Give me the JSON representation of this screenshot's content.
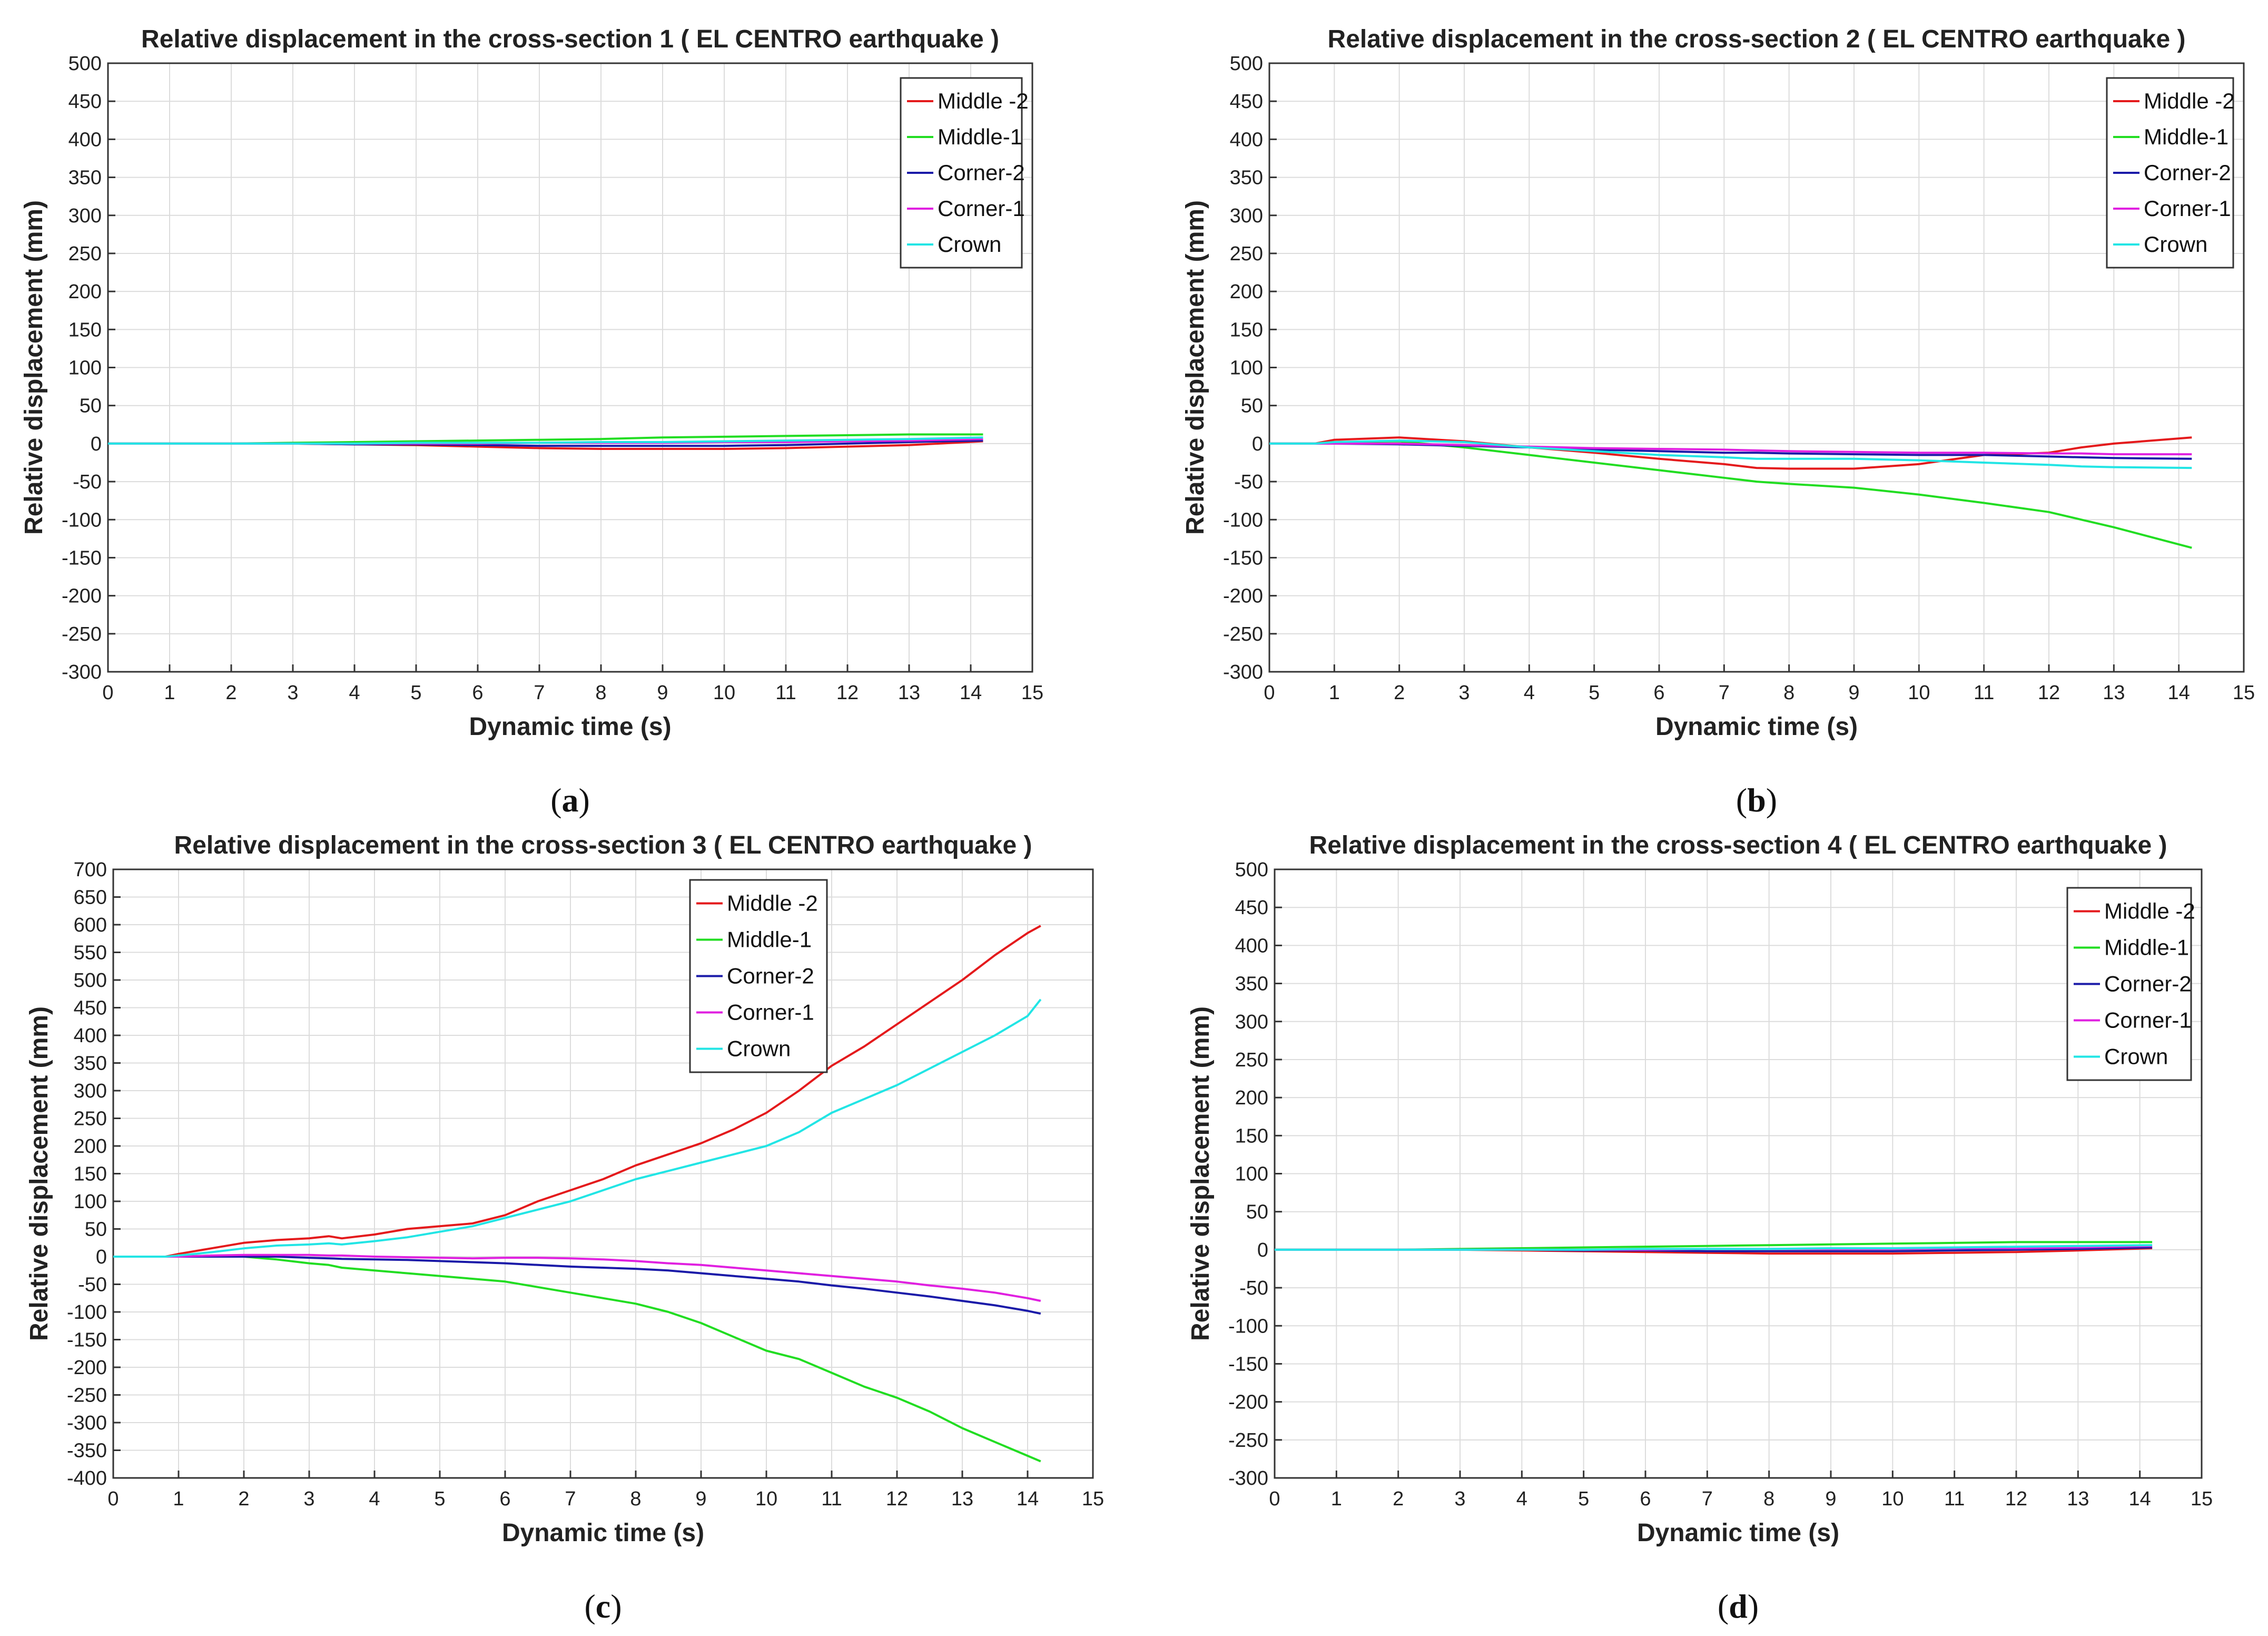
{
  "chart_data": [
    {
      "type": "line",
      "panel_label": "a",
      "title": "Relative displacement in the cross-section 1 ( EL CENTRO earthquake )",
      "xlabel": "Dynamic time (s)",
      "ylabel": "Relative displacement (mm)",
      "xlim": [
        0,
        15
      ],
      "ylim": [
        -300,
        500
      ],
      "xticks": [
        0,
        1,
        2,
        3,
        4,
        5,
        6,
        7,
        8,
        9,
        10,
        11,
        12,
        13,
        14,
        15
      ],
      "yticks": [
        -300,
        -250,
        -200,
        -150,
        -100,
        -50,
        0,
        50,
        100,
        150,
        200,
        250,
        300,
        350,
        400,
        450,
        500
      ],
      "grid": true,
      "legend_position": "top-right",
      "series": [
        {
          "name": "Middle -2",
          "color": "#e41a1c",
          "x": [
            0,
            1,
            2,
            3,
            4,
            5,
            6,
            7,
            8,
            9,
            10,
            11,
            12,
            13,
            14.2
          ],
          "y": [
            0,
            0,
            0,
            0,
            -1,
            -2,
            -4,
            -6,
            -7,
            -7,
            -7,
            -6,
            -4,
            -2,
            3
          ]
        },
        {
          "name": "Middle-1",
          "color": "#22dd22",
          "x": [
            0,
            1,
            2,
            3,
            4,
            5,
            6,
            7,
            8,
            9,
            10,
            11,
            12,
            13,
            14.2
          ],
          "y": [
            0,
            0,
            0,
            1,
            2,
            3,
            4,
            5,
            6,
            8,
            9,
            10,
            11,
            12,
            12
          ]
        },
        {
          "name": "Corner-2",
          "color": "#1a1aa8",
          "x": [
            0,
            1,
            2,
            3,
            4,
            5,
            6,
            7,
            8,
            9,
            10,
            11,
            12,
            13,
            14.2
          ],
          "y": [
            0,
            0,
            0,
            0,
            -1,
            -1,
            -2,
            -3,
            -3,
            -3,
            -3,
            -2,
            0,
            2,
            4
          ]
        },
        {
          "name": "Corner-1",
          "color": "#e020e0",
          "x": [
            0,
            1,
            2,
            3,
            4,
            5,
            6,
            7,
            8,
            9,
            10,
            11,
            12,
            13,
            14.2
          ],
          "y": [
            0,
            0,
            0,
            0,
            0,
            0,
            0,
            1,
            1,
            1,
            2,
            2,
            3,
            4,
            6
          ]
        },
        {
          "name": "Crown",
          "color": "#22e5e5",
          "x": [
            0,
            1,
            2,
            3,
            4,
            5,
            6,
            7,
            8,
            9,
            10,
            11,
            12,
            13,
            14.2
          ],
          "y": [
            0,
            0,
            0,
            0,
            0,
            1,
            1,
            1,
            2,
            2,
            3,
            4,
            5,
            6,
            8
          ]
        }
      ]
    },
    {
      "type": "line",
      "panel_label": "b",
      "title": "Relative displacement in the cross-section 2 ( EL CENTRO earthquake )",
      "xlabel": "Dynamic time (s)",
      "ylabel": "Relative displacement (mm)",
      "xlim": [
        0,
        15
      ],
      "ylim": [
        -300,
        500
      ],
      "xticks": [
        0,
        1,
        2,
        3,
        4,
        5,
        6,
        7,
        8,
        9,
        10,
        11,
        12,
        13,
        14,
        15
      ],
      "yticks": [
        -300,
        -250,
        -200,
        -150,
        -100,
        -50,
        0,
        50,
        100,
        150,
        200,
        250,
        300,
        350,
        400,
        450,
        500
      ],
      "grid": true,
      "legend_position": "top-right",
      "series": [
        {
          "name": "Middle -2",
          "color": "#e41a1c",
          "x": [
            0,
            0.7,
            1,
            2,
            3,
            4,
            5,
            6,
            7,
            7.5,
            8,
            9,
            10,
            11,
            12,
            12.5,
            13,
            14.2
          ],
          "y": [
            0,
            0,
            5,
            8,
            3,
            -5,
            -12,
            -20,
            -27,
            -32,
            -33,
            -33,
            -27,
            -15,
            -12,
            -5,
            0,
            8
          ]
        },
        {
          "name": "Middle-1",
          "color": "#22dd22",
          "x": [
            0,
            0.7,
            1,
            2,
            3,
            4,
            5,
            6,
            7,
            7.5,
            8,
            9,
            10,
            11,
            12,
            12.5,
            13,
            14.2
          ],
          "y": [
            0,
            0,
            2,
            3,
            -5,
            -15,
            -25,
            -35,
            -45,
            -50,
            -53,
            -58,
            -67,
            -78,
            -90,
            -100,
            -110,
            -137
          ]
        },
        {
          "name": "Corner-2",
          "color": "#1a1aa8",
          "x": [
            0,
            0.7,
            1,
            2,
            3,
            4,
            5,
            6,
            7,
            7.5,
            8,
            9,
            10,
            11,
            12,
            12.5,
            13,
            14.2
          ],
          "y": [
            0,
            0,
            0,
            -1,
            -3,
            -5,
            -8,
            -10,
            -12,
            -12,
            -13,
            -14,
            -15,
            -15,
            -17,
            -18,
            -19,
            -20
          ]
        },
        {
          "name": "Corner-1",
          "color": "#e020e0",
          "x": [
            0,
            0.7,
            1,
            2,
            3,
            4,
            5,
            6,
            7,
            7.5,
            8,
            9,
            10,
            11,
            12,
            12.5,
            13,
            14.2
          ],
          "y": [
            0,
            0,
            0,
            0,
            -2,
            -4,
            -6,
            -7,
            -8,
            -9,
            -10,
            -11,
            -12,
            -12,
            -13,
            -13,
            -14,
            -14
          ]
        },
        {
          "name": "Crown",
          "color": "#22e5e5",
          "x": [
            0,
            0.7,
            1,
            2,
            3,
            4,
            5,
            6,
            7,
            7.5,
            8,
            9,
            10,
            11,
            12,
            12.5,
            13,
            14.2
          ],
          "y": [
            0,
            0,
            2,
            4,
            2,
            -5,
            -10,
            -15,
            -18,
            -20,
            -20,
            -20,
            -22,
            -25,
            -28,
            -30,
            -31,
            -32
          ]
        }
      ]
    },
    {
      "type": "line",
      "panel_label": "c",
      "title": "Relative displacement in the cross-section 3 ( EL CENTRO earthquake )",
      "xlabel": "Dynamic time (s)",
      "ylabel": "Relative displacement (mm)",
      "xlim": [
        0,
        15
      ],
      "ylim": [
        -400,
        700
      ],
      "xticks": [
        0,
        1,
        2,
        3,
        4,
        5,
        6,
        7,
        8,
        9,
        10,
        11,
        12,
        13,
        14,
        15
      ],
      "yticks": [
        -400,
        -350,
        -300,
        -250,
        -200,
        -150,
        -100,
        -50,
        0,
        50,
        100,
        150,
        200,
        250,
        300,
        350,
        400,
        450,
        500,
        550,
        600,
        650,
        700
      ],
      "grid": true,
      "legend_position": "top-right",
      "series": [
        {
          "name": "Middle -2",
          "color": "#e41a1c",
          "x": [
            0,
            0.8,
            1,
            1.5,
            2,
            2.5,
            3,
            3.3,
            3.5,
            4,
            4.5,
            5,
            5.5,
            6,
            6.5,
            7,
            7.5,
            8,
            8.5,
            9,
            9.5,
            10,
            10.5,
            11,
            11.5,
            12,
            12.5,
            13,
            13.5,
            14,
            14.2
          ],
          "y": [
            0,
            0,
            5,
            15,
            25,
            30,
            33,
            37,
            33,
            40,
            50,
            55,
            60,
            75,
            100,
            120,
            140,
            165,
            185,
            205,
            230,
            260,
            300,
            345,
            380,
            420,
            460,
            500,
            545,
            585,
            598
          ]
        },
        {
          "name": "Middle-1",
          "color": "#22dd22",
          "x": [
            0,
            0.8,
            1,
            1.5,
            2,
            2.5,
            3,
            3.3,
            3.5,
            4,
            4.5,
            5,
            5.5,
            6,
            6.5,
            7,
            7.5,
            8,
            8.5,
            9,
            9.5,
            10,
            10.5,
            11,
            11.5,
            12,
            12.5,
            13,
            13.5,
            14,
            14.2
          ],
          "y": [
            0,
            0,
            0,
            2,
            0,
            -5,
            -12,
            -15,
            -20,
            -25,
            -30,
            -35,
            -40,
            -45,
            -55,
            -65,
            -75,
            -85,
            -100,
            -120,
            -145,
            -170,
            -185,
            -210,
            -235,
            -255,
            -280,
            -310,
            -335,
            -360,
            -370
          ]
        },
        {
          "name": "Corner-2",
          "color": "#1a1aa8",
          "x": [
            0,
            0.8,
            1,
            1.5,
            2,
            2.5,
            3,
            3.3,
            3.5,
            4,
            4.5,
            5,
            5.5,
            6,
            6.5,
            7,
            7.5,
            8,
            8.5,
            9,
            9.5,
            10,
            10.5,
            11,
            11.5,
            12,
            12.5,
            13,
            13.5,
            14,
            14.2
          ],
          "y": [
            0,
            0,
            0,
            0,
            0,
            0,
            -2,
            -3,
            -4,
            -5,
            -6,
            -8,
            -10,
            -12,
            -15,
            -18,
            -20,
            -22,
            -25,
            -30,
            -35,
            -40,
            -45,
            -52,
            -58,
            -65,
            -72,
            -80,
            -88,
            -98,
            -103
          ]
        },
        {
          "name": "Corner-1",
          "color": "#e020e0",
          "x": [
            0,
            0.8,
            1,
            1.5,
            2,
            2.5,
            3,
            3.3,
            3.5,
            4,
            4.5,
            5,
            5.5,
            6,
            6.5,
            7,
            7.5,
            8,
            8.5,
            9,
            9.5,
            10,
            10.5,
            11,
            11.5,
            12,
            12.5,
            13,
            13.5,
            14,
            14.2
          ],
          "y": [
            0,
            0,
            0,
            2,
            3,
            3,
            3,
            2,
            2,
            0,
            -1,
            -2,
            -3,
            -2,
            -2,
            -3,
            -5,
            -8,
            -12,
            -15,
            -20,
            -25,
            -30,
            -35,
            -40,
            -45,
            -52,
            -58,
            -65,
            -75,
            -80
          ]
        },
        {
          "name": "Crown",
          "color": "#22e5e5",
          "x": [
            0,
            0.8,
            1,
            1.5,
            2,
            2.5,
            3,
            3.3,
            3.5,
            4,
            4.5,
            5,
            5.5,
            6,
            6.5,
            7,
            7.5,
            8,
            8.5,
            9,
            9.5,
            10,
            10.5,
            11,
            11.5,
            12,
            12.5,
            13,
            13.5,
            14,
            14.2
          ],
          "y": [
            0,
            0,
            2,
            8,
            15,
            20,
            22,
            24,
            22,
            28,
            35,
            45,
            55,
            70,
            85,
            100,
            120,
            140,
            155,
            170,
            185,
            200,
            225,
            260,
            285,
            310,
            340,
            370,
            400,
            435,
            465
          ]
        }
      ]
    },
    {
      "type": "line",
      "panel_label": "d",
      "title": "Relative displacement in the cross-section 4 ( EL CENTRO earthquake )",
      "xlabel": "Dynamic time (s)",
      "ylabel": "Relative displacement (mm)",
      "xlim": [
        0,
        15
      ],
      "ylim": [
        -300,
        500
      ],
      "xticks": [
        0,
        1,
        2,
        3,
        4,
        5,
        6,
        7,
        8,
        9,
        10,
        11,
        12,
        13,
        14,
        15
      ],
      "yticks": [
        -300,
        -250,
        -200,
        -150,
        -100,
        -50,
        0,
        50,
        100,
        150,
        200,
        250,
        300,
        350,
        400,
        450,
        500
      ],
      "grid": true,
      "legend_position": "top-right",
      "series": [
        {
          "name": "Middle -2",
          "color": "#e41a1c",
          "x": [
            0,
            1,
            2,
            3,
            4,
            5,
            6,
            7,
            8,
            9,
            10,
            11,
            12,
            13,
            14.2
          ],
          "y": [
            0,
            0,
            0,
            0,
            -1,
            -2,
            -3,
            -4,
            -5,
            -5,
            -5,
            -4,
            -3,
            -1,
            2
          ]
        },
        {
          "name": "Middle-1",
          "color": "#22dd22",
          "x": [
            0,
            1,
            2,
            3,
            4,
            5,
            6,
            7,
            8,
            9,
            10,
            11,
            12,
            13,
            14.2
          ],
          "y": [
            0,
            0,
            0,
            1,
            2,
            3,
            4,
            5,
            6,
            7,
            8,
            9,
            10,
            10,
            10
          ]
        },
        {
          "name": "Corner-2",
          "color": "#1a1aa8",
          "x": [
            0,
            1,
            2,
            3,
            4,
            5,
            6,
            7,
            8,
            9,
            10,
            11,
            12,
            13,
            14.2
          ],
          "y": [
            0,
            0,
            0,
            0,
            0,
            -1,
            -1,
            -2,
            -2,
            -2,
            -2,
            -1,
            0,
            1,
            3
          ]
        },
        {
          "name": "Corner-1",
          "color": "#e020e0",
          "x": [
            0,
            1,
            2,
            3,
            4,
            5,
            6,
            7,
            8,
            9,
            10,
            11,
            12,
            13,
            14.2
          ],
          "y": [
            0,
            0,
            0,
            0,
            0,
            0,
            0,
            1,
            1,
            1,
            1,
            2,
            2,
            3,
            5
          ]
        },
        {
          "name": "Crown",
          "color": "#22e5e5",
          "x": [
            0,
            1,
            2,
            3,
            4,
            5,
            6,
            7,
            8,
            9,
            10,
            11,
            12,
            13,
            14.2
          ],
          "y": [
            0,
            0,
            0,
            0,
            0,
            0,
            1,
            1,
            1,
            2,
            2,
            3,
            4,
            5,
            6
          ]
        }
      ]
    }
  ]
}
